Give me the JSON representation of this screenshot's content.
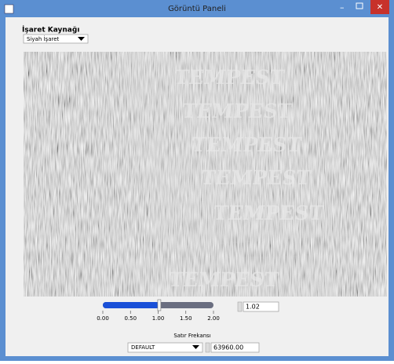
{
  "window": {
    "title": "Görüntü Paneli"
  },
  "source": {
    "label": "İşaret Kaynağı",
    "selected": "Siyah İşaret"
  },
  "image": {
    "texts": [
      "TEMPEST",
      "TEMPEST",
      "TEMPEST",
      "TEMPEST",
      "TEMPEST",
      "TEMPEST"
    ]
  },
  "slider": {
    "min": 0,
    "max": 2,
    "value": 1.02,
    "ticks": [
      {
        "value": 0,
        "label": "0.00"
      },
      {
        "value": 0.5,
        "label": "0.50"
      },
      {
        "value": 1,
        "label": "1.00"
      },
      {
        "value": 1.5,
        "label": "1.50"
      },
      {
        "value": 2,
        "label": "2.00"
      }
    ]
  },
  "line_frequency": {
    "label": "Satır Frekansı",
    "preset": "DEFAULT",
    "value": "63960.00"
  }
}
